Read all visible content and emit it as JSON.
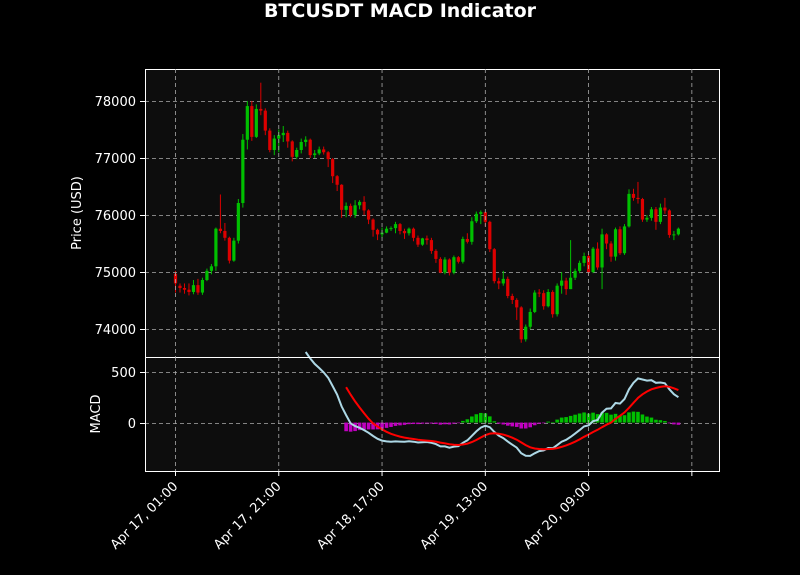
{
  "chart_data": {
    "type": "candlestick+macd",
    "title": "BTCUSDT MACD Indicator",
    "colors": {
      "background": "#000000",
      "panel": "#0d0d0d",
      "grid": "#aaaaaa",
      "up": "#00c000",
      "down": "#dd0000",
      "macd_line": "#add8e6",
      "signal_line": "#ff0000",
      "hist_pos": "#00c000",
      "hist_neg": "#c000c0"
    },
    "xlabels": [
      "Apr 17, 01:00",
      "Apr 17, 21:00",
      "Apr 18, 17:00",
      "Apr 19, 13:00",
      "Apr 20, 09:00"
    ],
    "price_panel": {
      "ylabel": "Price (USD)",
      "yticks": [
        74000,
        75000,
        76000,
        77000,
        78000
      ],
      "ylim": [
        73510,
        78560
      ],
      "grid": true
    },
    "macd_panel": {
      "ylabel": "MACD",
      "yticks": [
        0,
        500
      ],
      "ylim": [
        -480,
        650
      ],
      "grid": true
    },
    "candles": [
      [
        74970,
        74800,
        75020,
        74640
      ],
      [
        74760,
        74720,
        74800,
        74640
      ],
      [
        74720,
        74690,
        74800,
        74620
      ],
      [
        74690,
        74650,
        74800,
        74590
      ],
      [
        74650,
        74770,
        74860,
        74610
      ],
      [
        74770,
        74640,
        74880,
        74600
      ],
      [
        74640,
        74860,
        74900,
        74600
      ],
      [
        74860,
        75020,
        75060,
        74840
      ],
      [
        75020,
        75100,
        75140,
        74960
      ],
      [
        75100,
        75760,
        75780,
        75020
      ],
      [
        75760,
        75720,
        76360,
        75680
      ],
      [
        75720,
        75600,
        75860,
        75550
      ],
      [
        75600,
        75200,
        75620,
        75150
      ],
      [
        75200,
        75550,
        75600,
        75180
      ],
      [
        75550,
        76210,
        76280,
        75500
      ],
      [
        76210,
        77320,
        77420,
        76130
      ],
      [
        77320,
        77910,
        78000,
        77150
      ],
      [
        77910,
        77370,
        78000,
        77300
      ],
      [
        77370,
        77860,
        77940,
        77350
      ],
      [
        77860,
        77830,
        78320,
        77750
      ],
      [
        77830,
        77480,
        77870,
        77400
      ],
      [
        77480,
        77140,
        77520,
        77100
      ],
      [
        77140,
        77340,
        77400,
        77050
      ],
      [
        77340,
        77400,
        77500,
        77100
      ],
      [
        77400,
        77440,
        77560,
        77280
      ],
      [
        77440,
        77290,
        77480,
        77180
      ],
      [
        77290,
        77020,
        77310,
        76940
      ],
      [
        77020,
        77140,
        77180,
        76980
      ],
      [
        77140,
        77280,
        77340,
        77080
      ],
      [
        77280,
        77320,
        77380,
        77200
      ],
      [
        77320,
        77050,
        77340,
        77000
      ],
      [
        77050,
        77080,
        77140,
        77000
      ],
      [
        77080,
        77150,
        77200,
        77050
      ],
      [
        77150,
        77100,
        77200,
        77060
      ],
      [
        77100,
        76980,
        77120,
        76840
      ],
      [
        76980,
        76680,
        77000,
        76560
      ],
      [
        76680,
        76530,
        76700,
        76420
      ],
      [
        76530,
        76090,
        76540,
        75950
      ],
      [
        76090,
        76160,
        76220,
        75960
      ],
      [
        76160,
        76000,
        76200,
        75960
      ],
      [
        76000,
        76170,
        76260,
        75950
      ],
      [
        76170,
        76230,
        76260,
        76100
      ],
      [
        76230,
        76080,
        76330,
        76000
      ],
      [
        76080,
        75920,
        76100,
        75840
      ],
      [
        75920,
        75740,
        75940,
        75620
      ],
      [
        75740,
        75660,
        75760,
        75560
      ],
      [
        75660,
        75690,
        75780,
        75600
      ],
      [
        75690,
        75760,
        75800,
        75680
      ],
      [
        75760,
        75770,
        75800,
        75720
      ],
      [
        75770,
        75840,
        75880,
        75680
      ],
      [
        75840,
        75720,
        75860,
        75660
      ],
      [
        75720,
        75680,
        75760,
        75580
      ],
      [
        75680,
        75760,
        75780,
        75640
      ],
      [
        75760,
        75600,
        75780,
        75540
      ],
      [
        75600,
        75480,
        75640,
        75440
      ],
      [
        75480,
        75590,
        75600,
        75460
      ],
      [
        75590,
        75560,
        75640,
        75480
      ],
      [
        75560,
        75370,
        75600,
        75320
      ],
      [
        75370,
        75230,
        75400,
        75160
      ],
      [
        75230,
        74990,
        75260,
        74980
      ],
      [
        74990,
        75220,
        75260,
        74960
      ],
      [
        75220,
        74990,
        75240,
        74940
      ],
      [
        74990,
        75260,
        75290,
        74960
      ],
      [
        75260,
        75180,
        75280,
        75150
      ],
      [
        75180,
        75580,
        75620,
        75150
      ],
      [
        75580,
        75530,
        75680,
        75500
      ],
      [
        75530,
        75890,
        75960,
        75480
      ],
      [
        75890,
        76020,
        76060,
        75860
      ],
      [
        76020,
        76050,
        76080,
        75840
      ],
      [
        76050,
        75880,
        76060,
        75800
      ],
      [
        75880,
        75400,
        75900,
        75350
      ],
      [
        75400,
        74840,
        75420,
        74800
      ],
      [
        74840,
        74800,
        74900,
        74700
      ],
      [
        74800,
        74880,
        75020,
        74760
      ],
      [
        74880,
        74580,
        74920,
        74540
      ],
      [
        74580,
        74510,
        74620,
        74440
      ],
      [
        74510,
        74380,
        74540,
        74160
      ],
      [
        74380,
        73820,
        74400,
        73760
      ],
      [
        73820,
        74040,
        74080,
        73780
      ],
      [
        74040,
        74300,
        74360,
        74000
      ],
      [
        74300,
        74640,
        74680,
        74280
      ],
      [
        74640,
        74630,
        74700,
        74560
      ],
      [
        74630,
        74400,
        74680,
        74340
      ],
      [
        74400,
        74650,
        74700,
        74380
      ],
      [
        74650,
        74260,
        74680,
        74200
      ],
      [
        74260,
        74760,
        74800,
        74220
      ],
      [
        74760,
        74850,
        75000,
        74620
      ],
      [
        74850,
        74700,
        74900,
        74600
      ],
      [
        74700,
        74900,
        75560,
        74700
      ],
      [
        74900,
        75020,
        75060,
        74860
      ],
      [
        75020,
        75160,
        75200,
        74980
      ],
      [
        75160,
        75280,
        75340,
        75100
      ],
      [
        75280,
        75000,
        75320,
        74960
      ],
      [
        75000,
        75410,
        75440,
        74980
      ],
      [
        75410,
        75080,
        75520,
        75040
      ],
      [
        75080,
        75660,
        75760,
        74700
      ],
      [
        75660,
        75500,
        75680,
        75400
      ],
      [
        75500,
        75270,
        75540,
        75180
      ],
      [
        75270,
        75750,
        75780,
        75200
      ],
      [
        75750,
        75330,
        75800,
        75300
      ],
      [
        75330,
        75800,
        75840,
        75300
      ],
      [
        75800,
        76370,
        76450,
        75780
      ],
      [
        76370,
        76300,
        76460,
        76250
      ],
      [
        76300,
        76280,
        76580,
        76200
      ],
      [
        76280,
        75920,
        76300,
        75880
      ],
      [
        75920,
        75950,
        76000,
        75880
      ],
      [
        75950,
        76100,
        76140,
        75900
      ],
      [
        76100,
        75880,
        76140,
        75740
      ],
      [
        75880,
        76130,
        76200,
        75840
      ],
      [
        76130,
        76080,
        76300,
        76020
      ],
      [
        76080,
        75650,
        76100,
        75600
      ],
      [
        75650,
        75660,
        75720,
        75560
      ],
      [
        75660,
        75760,
        75780,
        75640
      ]
    ],
    "macd_line": [
      null,
      null,
      null,
      null,
      null,
      null,
      null,
      null,
      null,
      null,
      null,
      null,
      null,
      null,
      null,
      null,
      null,
      null,
      null,
      null,
      null,
      null,
      null,
      null,
      null,
      null,
      null,
      null,
      null,
      null,
      null,
      null,
      null,
      null,
      null,
      null,
      null,
      null,
      null,
      null,
      null,
      null,
      null,
      null,
      null,
      null,
      null,
      null,
      null,
      null,
      null,
      null,
      null,
      null,
      null,
      null,
      null,
      null,
      null,
      null,
      null,
      null,
      null,
      null,
      null,
      null,
      null,
      null,
      null,
      null,
      null,
      null,
      null,
      null,
      null,
      null,
      null,
      null,
      null,
      null,
      null,
      null,
      null,
      null,
      null,
      null,
      null,
      null,
      null,
      null,
      null,
      null,
      null,
      null,
      null,
      null,
      null,
      null,
      null,
      null,
      null,
      null,
      null,
      null,
      null,
      null,
      null,
      null,
      null,
      null,
      null,
      null,
      null,
      null,
      null,
      null
    ],
    "signal_line": [],
    "histogram": []
  }
}
